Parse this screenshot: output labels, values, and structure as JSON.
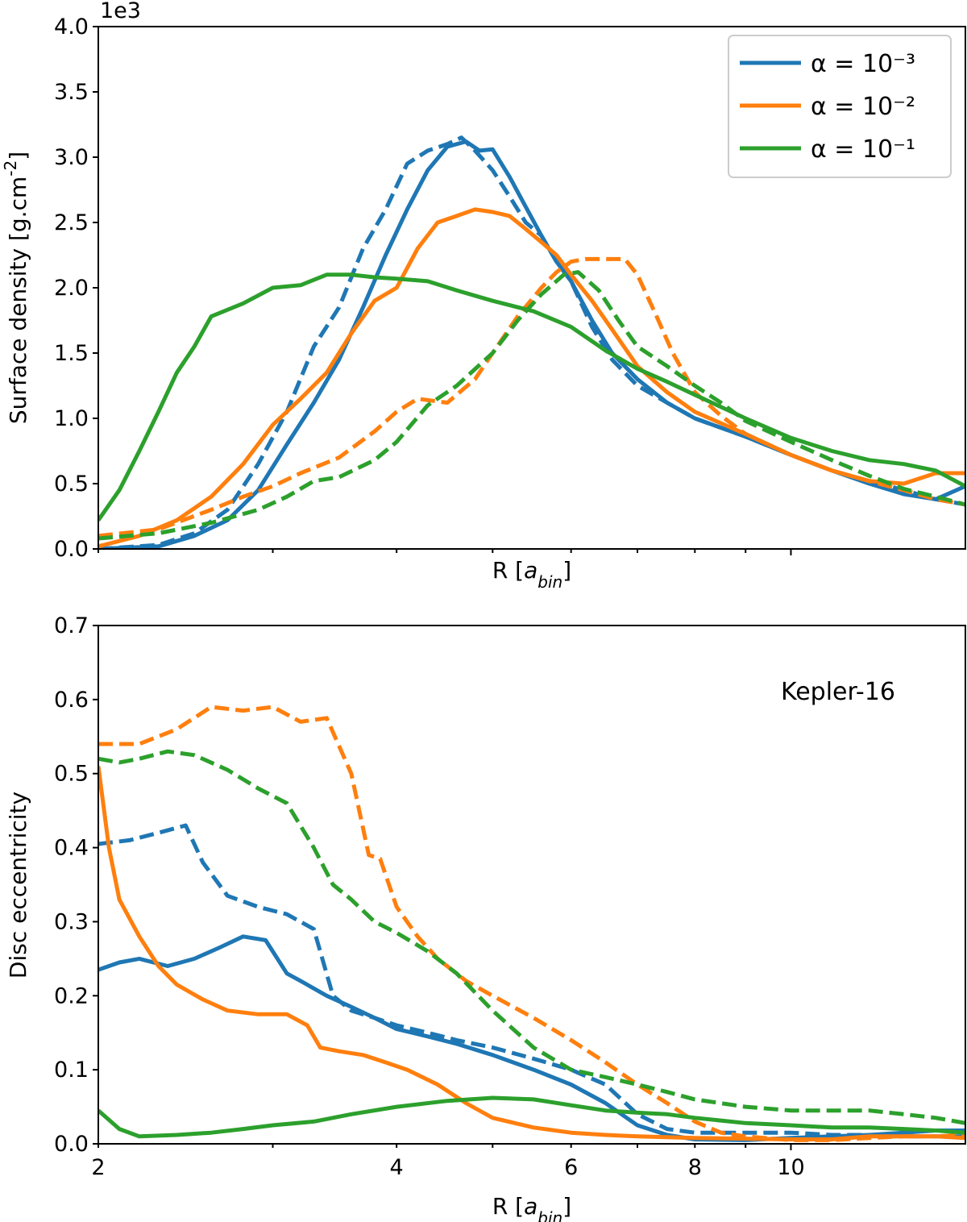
{
  "colors": {
    "blue": "#1f77b4",
    "orange": "#ff7f0e",
    "green": "#2ca02c"
  },
  "chart_data": [
    {
      "type": "line",
      "xscale": "log",
      "xlim": [
        2,
        15
      ],
      "ylim": [
        0,
        4.0
      ],
      "ylabel": "Surface density [g.cm$^{-2}$]",
      "xlabel": "R [$a_{bin}$]",
      "offset_text": "1e3",
      "y_ticks": [
        "0.0",
        "0.5",
        "1.0",
        "1.5",
        "2.0",
        "2.5",
        "3.0",
        "3.5",
        "4.0"
      ],
      "x_ticks": [],
      "grid": false,
      "legend": {
        "placement": "top-right",
        "entries": [
          {
            "label": "α = 10⁻³",
            "color": "#1f77b4"
          },
          {
            "label": "α = 10⁻²",
            "color": "#ff7f0e"
          },
          {
            "label": "α = 10⁻¹",
            "color": "#2ca02c"
          }
        ]
      },
      "series": [
        {
          "color": "#1f77b4",
          "style": "solid",
          "x": [
            2.0,
            2.3,
            2.5,
            2.7,
            2.9,
            3.1,
            3.3,
            3.5,
            3.7,
            3.9,
            4.1,
            4.3,
            4.5,
            4.7,
            4.85,
            5.0,
            5.2,
            5.4,
            5.6,
            5.8,
            6.0,
            6.3,
            6.6,
            7.0,
            7.5,
            8.0,
            9.0,
            10.0,
            11.0,
            12.0,
            13.0,
            14.0,
            15.0
          ],
          "y": [
            0.0,
            0.02,
            0.1,
            0.22,
            0.45,
            0.8,
            1.12,
            1.45,
            1.85,
            2.25,
            2.6,
            2.9,
            3.08,
            3.12,
            3.05,
            3.06,
            2.85,
            2.62,
            2.4,
            2.2,
            2.05,
            1.75,
            1.5,
            1.3,
            1.12,
            1.0,
            0.86,
            0.72,
            0.6,
            0.5,
            0.42,
            0.38,
            0.48
          ]
        },
        {
          "color": "#1f77b4",
          "style": "dashed",
          "x": [
            2.0,
            2.3,
            2.5,
            2.7,
            2.9,
            3.1,
            3.3,
            3.5,
            3.7,
            3.9,
            4.1,
            4.3,
            4.5,
            4.65,
            4.8,
            5.0,
            5.2,
            5.4,
            5.6,
            5.8,
            6.0,
            6.3,
            6.6,
            7.0,
            7.5,
            8.0,
            9.0,
            10.0,
            11.0,
            12.0,
            13.0,
            14.0,
            15.0
          ],
          "y": [
            0.0,
            0.03,
            0.12,
            0.3,
            0.65,
            1.05,
            1.55,
            1.85,
            2.3,
            2.6,
            2.95,
            3.05,
            3.1,
            3.15,
            3.05,
            2.9,
            2.7,
            2.5,
            2.4,
            2.2,
            2.05,
            1.7,
            1.45,
            1.25,
            1.12,
            1.0,
            0.86,
            0.72,
            0.6,
            0.52,
            0.45,
            0.38,
            0.34
          ]
        },
        {
          "color": "#ff7f0e",
          "style": "solid",
          "x": [
            2.0,
            2.2,
            2.4,
            2.6,
            2.8,
            3.0,
            3.2,
            3.4,
            3.6,
            3.8,
            4.0,
            4.2,
            4.4,
            4.6,
            4.8,
            5.0,
            5.2,
            5.4,
            5.6,
            5.8,
            6.0,
            6.3,
            6.6,
            7.0,
            7.5,
            8.0,
            9.0,
            10.0,
            11.0,
            12.0,
            13.0,
            14.0,
            15.0
          ],
          "y": [
            0.02,
            0.1,
            0.22,
            0.4,
            0.65,
            0.95,
            1.15,
            1.35,
            1.65,
            1.9,
            2.0,
            2.3,
            2.5,
            2.55,
            2.6,
            2.58,
            2.55,
            2.45,
            2.35,
            2.25,
            2.1,
            1.9,
            1.68,
            1.4,
            1.2,
            1.05,
            0.88,
            0.72,
            0.6,
            0.52,
            0.5,
            0.58,
            0.58
          ]
        },
        {
          "color": "#ff7f0e",
          "style": "dashed",
          "x": [
            2.0,
            2.3,
            2.6,
            2.8,
            3.0,
            3.2,
            3.5,
            3.8,
            4.0,
            4.2,
            4.5,
            4.8,
            5.0,
            5.3,
            5.6,
            5.8,
            6.0,
            6.2,
            6.5,
            6.8,
            7.0,
            7.3,
            7.6,
            8.0,
            8.5,
            9.0,
            10.0,
            11.0,
            12.0,
            13.0,
            14.0,
            15.0
          ],
          "y": [
            0.1,
            0.15,
            0.3,
            0.4,
            0.48,
            0.58,
            0.7,
            0.9,
            1.05,
            1.15,
            1.12,
            1.3,
            1.5,
            1.78,
            2.0,
            2.12,
            2.2,
            2.22,
            2.22,
            2.22,
            2.1,
            1.8,
            1.5,
            1.2,
            1.02,
            0.88,
            0.72,
            0.6,
            0.52,
            0.45,
            0.38,
            0.34
          ]
        },
        {
          "color": "#2ca02c",
          "style": "solid",
          "x": [
            2.0,
            2.1,
            2.2,
            2.3,
            2.4,
            2.5,
            2.6,
            2.8,
            3.0,
            3.2,
            3.4,
            3.6,
            3.8,
            4.0,
            4.3,
            4.6,
            5.0,
            5.5,
            6.0,
            6.5,
            7.0,
            7.5,
            8.0,
            9.0,
            10.0,
            11.0,
            12.0,
            13.0,
            14.0,
            15.0
          ],
          "y": [
            0.22,
            0.45,
            0.75,
            1.05,
            1.35,
            1.55,
            1.78,
            1.88,
            2.0,
            2.02,
            2.1,
            2.1,
            2.08,
            2.07,
            2.05,
            1.98,
            1.9,
            1.82,
            1.7,
            1.52,
            1.38,
            1.28,
            1.18,
            1.0,
            0.85,
            0.75,
            0.68,
            0.65,
            0.6,
            0.48
          ]
        },
        {
          "color": "#2ca02c",
          "style": "dashed",
          "x": [
            2.0,
            2.3,
            2.6,
            2.9,
            3.1,
            3.3,
            3.5,
            3.8,
            4.0,
            4.3,
            4.6,
            5.0,
            5.3,
            5.6,
            5.9,
            6.1,
            6.4,
            6.7,
            7.0,
            7.5,
            8.0,
            8.5,
            9.0,
            10.0,
            11.0,
            12.0,
            13.0,
            14.0,
            15.0
          ],
          "y": [
            0.08,
            0.12,
            0.2,
            0.3,
            0.4,
            0.52,
            0.55,
            0.68,
            0.82,
            1.1,
            1.25,
            1.5,
            1.75,
            1.95,
            2.1,
            2.12,
            1.98,
            1.75,
            1.55,
            1.4,
            1.25,
            1.12,
            0.98,
            0.82,
            0.68,
            0.56,
            0.46,
            0.4,
            0.34
          ]
        }
      ]
    },
    {
      "type": "line",
      "xscale": "log",
      "xlim": [
        2,
        15
      ],
      "ylim": [
        0,
        0.7
      ],
      "ylabel": "Disc eccentricity",
      "xlabel": "R [$a_{bin}$]",
      "y_ticks": [
        "0.0",
        "0.1",
        "0.2",
        "0.3",
        "0.4",
        "0.5",
        "0.6",
        "0.7"
      ],
      "x_ticks": [
        "2",
        "4",
        "6",
        "8",
        "10"
      ],
      "annotation": "Kepler-16",
      "grid": false,
      "series": [
        {
          "color": "#1f77b4",
          "style": "solid",
          "x": [
            2.0,
            2.1,
            2.2,
            2.35,
            2.5,
            2.65,
            2.8,
            2.95,
            3.1,
            3.2,
            3.4,
            3.6,
            3.8,
            4.0,
            4.3,
            4.6,
            5.0,
            5.5,
            6.0,
            6.5,
            7.0,
            7.5,
            8.0,
            9.0,
            10.0,
            11.0,
            12.0,
            13.0,
            14.0,
            15.0
          ],
          "y": [
            0.235,
            0.245,
            0.25,
            0.24,
            0.25,
            0.265,
            0.28,
            0.275,
            0.23,
            0.22,
            0.2,
            0.185,
            0.17,
            0.155,
            0.145,
            0.135,
            0.12,
            0.1,
            0.08,
            0.055,
            0.025,
            0.012,
            0.006,
            0.005,
            0.008,
            0.01,
            0.012,
            0.015,
            0.018,
            0.018
          ]
        },
        {
          "color": "#1f77b4",
          "style": "dashed",
          "x": [
            2.0,
            2.15,
            2.3,
            2.45,
            2.55,
            2.7,
            2.9,
            3.1,
            3.3,
            3.45,
            3.6,
            3.8,
            4.0,
            4.3,
            4.6,
            5.0,
            5.5,
            6.0,
            6.5,
            7.0,
            7.5,
            8.0,
            9.0,
            10.0,
            11.0,
            12.0,
            13.0,
            14.0,
            15.0
          ],
          "y": [
            0.405,
            0.41,
            0.42,
            0.43,
            0.38,
            0.335,
            0.32,
            0.31,
            0.29,
            0.2,
            0.18,
            0.17,
            0.16,
            0.15,
            0.14,
            0.13,
            0.115,
            0.1,
            0.08,
            0.04,
            0.02,
            0.015,
            0.015,
            0.015,
            0.012,
            0.012,
            0.01,
            0.01,
            0.01
          ]
        },
        {
          "color": "#ff7f0e",
          "style": "solid",
          "x": [
            2.0,
            2.05,
            2.1,
            2.2,
            2.3,
            2.4,
            2.55,
            2.7,
            2.9,
            3.1,
            3.25,
            3.35,
            3.5,
            3.7,
            3.9,
            4.1,
            4.4,
            4.7,
            5.0,
            5.5,
            6.0,
            6.5,
            7.0,
            8.0,
            9.0,
            10.0,
            11.0,
            12.0,
            13.0,
            14.0,
            15.0
          ],
          "y": [
            0.51,
            0.4,
            0.33,
            0.28,
            0.24,
            0.215,
            0.195,
            0.18,
            0.175,
            0.175,
            0.16,
            0.13,
            0.125,
            0.12,
            0.11,
            0.1,
            0.08,
            0.055,
            0.035,
            0.022,
            0.015,
            0.012,
            0.01,
            0.008,
            0.007,
            0.006,
            0.006,
            0.01,
            0.01,
            0.01,
            0.008
          ]
        },
        {
          "color": "#ff7f0e",
          "style": "dashed",
          "x": [
            2.0,
            2.2,
            2.4,
            2.6,
            2.8,
            3.0,
            3.2,
            3.4,
            3.6,
            3.75,
            3.85,
            4.0,
            4.2,
            4.4,
            4.7,
            5.0,
            5.5,
            6.0,
            6.5,
            7.0,
            7.5,
            8.0,
            8.5,
            9.0,
            10.0,
            11.0,
            12.0,
            13.0,
            14.0,
            15.0
          ],
          "y": [
            0.54,
            0.54,
            0.56,
            0.59,
            0.585,
            0.59,
            0.57,
            0.575,
            0.5,
            0.39,
            0.385,
            0.32,
            0.28,
            0.25,
            0.22,
            0.2,
            0.17,
            0.14,
            0.11,
            0.08,
            0.055,
            0.03,
            0.015,
            0.01,
            0.005,
            0.005,
            0.008,
            0.01,
            0.01,
            0.012
          ]
        },
        {
          "color": "#2ca02c",
          "style": "dashed",
          "x": [
            2.0,
            2.1,
            2.2,
            2.35,
            2.5,
            2.7,
            2.9,
            3.1,
            3.3,
            3.45,
            3.6,
            3.8,
            4.0,
            4.3,
            4.6,
            5.0,
            5.5,
            6.0,
            6.5,
            7.0,
            7.5,
            8.0,
            9.0,
            10.0,
            11.0,
            12.0,
            13.0,
            14.0,
            15.0
          ],
          "y": [
            0.52,
            0.515,
            0.52,
            0.53,
            0.525,
            0.505,
            0.48,
            0.46,
            0.4,
            0.35,
            0.33,
            0.3,
            0.285,
            0.26,
            0.23,
            0.18,
            0.13,
            0.1,
            0.09,
            0.08,
            0.07,
            0.06,
            0.05,
            0.045,
            0.045,
            0.045,
            0.04,
            0.035,
            0.028
          ]
        },
        {
          "color": "#2ca02c",
          "style": "solid",
          "x": [
            2.0,
            2.1,
            2.2,
            2.4,
            2.6,
            2.8,
            3.0,
            3.3,
            3.6,
            4.0,
            4.5,
            5.0,
            5.5,
            6.0,
            6.5,
            7.0,
            7.5,
            8.0,
            9.0,
            10.0,
            11.0,
            12.0,
            13.0,
            14.0,
            15.0
          ],
          "y": [
            0.045,
            0.02,
            0.01,
            0.012,
            0.015,
            0.02,
            0.025,
            0.03,
            0.04,
            0.05,
            0.058,
            0.062,
            0.06,
            0.052,
            0.045,
            0.042,
            0.04,
            0.035,
            0.028,
            0.025,
            0.022,
            0.022,
            0.02,
            0.018,
            0.015
          ]
        }
      ]
    }
  ]
}
